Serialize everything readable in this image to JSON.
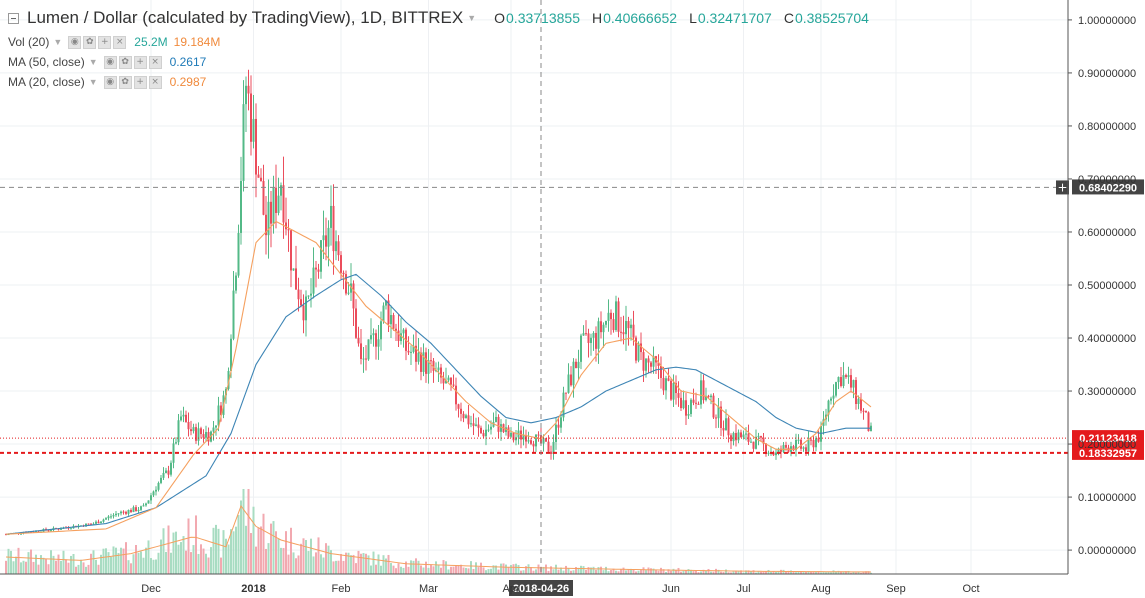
{
  "header": {
    "title": "Lumen / Dollar (calculated by TradingView), 1D, BITTREX",
    "ohlc": [
      {
        "label": "O",
        "value": "0.33713855"
      },
      {
        "label": "H",
        "value": "0.40666652"
      },
      {
        "label": "L",
        "value": "0.32471707"
      },
      {
        "label": "C",
        "value": "0.38525704"
      }
    ]
  },
  "indicators": {
    "vol": {
      "label": "Vol (20)",
      "value1": "25.2M",
      "value2": "19.184M"
    },
    "ma50": {
      "label": "MA (50, close)",
      "value": "0.2617"
    },
    "ma20": {
      "label": "MA (20, close)",
      "value": "0.2987"
    }
  },
  "colors": {
    "up": "#53b987",
    "down": "#eb4d5c",
    "ma50": "#3d85b5",
    "ma20": "#f5a05f",
    "vol_up": "#a8dcc2",
    "vol_down": "#f2a9b0",
    "dashed_red": "#e41a1c"
  },
  "price_labels": {
    "crosshair": "0.68402290",
    "last": "0.21123418",
    "line": "0.18332957",
    "crosshair_date": "2018-04-26"
  },
  "chart_data": {
    "type": "candlestick",
    "title": "Lumen / Dollar (calculated by TradingView), 1D, BITTREX",
    "y_range": [
      -0.03,
      1.03
    ],
    "y_ticks": [
      "1.00000000",
      "0.90000000",
      "0.80000000",
      "0.70000000",
      "0.60000000",
      "0.50000000",
      "0.40000000",
      "0.30000000",
      "0.20000000",
      "0.10000000",
      "0.00000000"
    ],
    "x_ticks": [
      "Dec",
      "2018",
      "Feb",
      "Mar",
      "Apr",
      "Jun",
      "Jul",
      "Aug",
      "Sep",
      "Oct"
    ],
    "close_keypoints": [
      [
        0,
        0.03
      ],
      [
        20,
        0.04
      ],
      [
        35,
        0.05
      ],
      [
        45,
        0.07
      ],
      [
        55,
        0.08
      ],
      [
        60,
        0.12
      ],
      [
        65,
        0.15
      ],
      [
        70,
        0.25
      ],
      [
        75,
        0.22
      ],
      [
        82,
        0.22
      ],
      [
        88,
        0.3
      ],
      [
        92,
        0.55
      ],
      [
        96,
        0.88
      ],
      [
        100,
        0.75
      ],
      [
        104,
        0.6
      ],
      [
        110,
        0.7
      ],
      [
        115,
        0.52
      ],
      [
        120,
        0.45
      ],
      [
        126,
        0.55
      ],
      [
        130,
        0.62
      ],
      [
        134,
        0.55
      ],
      [
        138,
        0.48
      ],
      [
        142,
        0.35
      ],
      [
        146,
        0.38
      ],
      [
        152,
        0.46
      ],
      [
        156,
        0.42
      ],
      [
        160,
        0.38
      ],
      [
        166,
        0.36
      ],
      [
        172,
        0.33
      ],
      [
        178,
        0.3
      ],
      [
        184,
        0.25
      ],
      [
        190,
        0.22
      ],
      [
        196,
        0.24
      ],
      [
        202,
        0.21
      ],
      [
        208,
        0.22
      ],
      [
        214,
        0.2
      ],
      [
        218,
        0.19
      ],
      [
        224,
        0.3
      ],
      [
        230,
        0.38
      ],
      [
        236,
        0.4
      ],
      [
        242,
        0.45
      ],
      [
        248,
        0.42
      ],
      [
        254,
        0.36
      ],
      [
        260,
        0.34
      ],
      [
        266,
        0.3
      ],
      [
        272,
        0.27
      ],
      [
        278,
        0.3
      ],
      [
        284,
        0.26
      ],
      [
        290,
        0.22
      ],
      [
        296,
        0.21
      ],
      [
        302,
        0.2
      ],
      [
        308,
        0.18
      ],
      [
        314,
        0.2
      ],
      [
        320,
        0.19
      ],
      [
        326,
        0.22
      ],
      [
        330,
        0.3
      ],
      [
        334,
        0.33
      ],
      [
        338,
        0.31
      ],
      [
        342,
        0.27
      ],
      [
        346,
        0.22
      ]
    ],
    "ma50_keypoints": [
      [
        0,
        0.03
      ],
      [
        40,
        0.05
      ],
      [
        60,
        0.08
      ],
      [
        80,
        0.14
      ],
      [
        90,
        0.22
      ],
      [
        100,
        0.35
      ],
      [
        112,
        0.44
      ],
      [
        124,
        0.48
      ],
      [
        134,
        0.51
      ],
      [
        140,
        0.52
      ],
      [
        150,
        0.48
      ],
      [
        160,
        0.43
      ],
      [
        170,
        0.39
      ],
      [
        180,
        0.34
      ],
      [
        190,
        0.29
      ],
      [
        200,
        0.25
      ],
      [
        210,
        0.24
      ],
      [
        220,
        0.25
      ],
      [
        230,
        0.27
      ],
      [
        240,
        0.3
      ],
      [
        250,
        0.32
      ],
      [
        260,
        0.34
      ],
      [
        268,
        0.345
      ],
      [
        276,
        0.34
      ],
      [
        284,
        0.32
      ],
      [
        292,
        0.3
      ],
      [
        300,
        0.28
      ],
      [
        308,
        0.25
      ],
      [
        316,
        0.23
      ],
      [
        326,
        0.22
      ],
      [
        336,
        0.23
      ],
      [
        346,
        0.23
      ]
    ],
    "ma20_keypoints": [
      [
        0,
        0.03
      ],
      [
        40,
        0.04
      ],
      [
        60,
        0.08
      ],
      [
        75,
        0.18
      ],
      [
        85,
        0.23
      ],
      [
        92,
        0.38
      ],
      [
        100,
        0.58
      ],
      [
        108,
        0.62
      ],
      [
        116,
        0.6
      ],
      [
        124,
        0.58
      ],
      [
        134,
        0.52
      ],
      [
        144,
        0.46
      ],
      [
        154,
        0.42
      ],
      [
        164,
        0.38
      ],
      [
        174,
        0.33
      ],
      [
        184,
        0.28
      ],
      [
        194,
        0.24
      ],
      [
        204,
        0.22
      ],
      [
        214,
        0.21
      ],
      [
        220,
        0.24
      ],
      [
        230,
        0.33
      ],
      [
        240,
        0.39
      ],
      [
        250,
        0.4
      ],
      [
        260,
        0.36
      ],
      [
        270,
        0.3
      ],
      [
        280,
        0.29
      ],
      [
        290,
        0.25
      ],
      [
        300,
        0.21
      ],
      [
        308,
        0.19
      ],
      [
        316,
        0.19
      ],
      [
        324,
        0.22
      ],
      [
        332,
        0.28
      ],
      [
        338,
        0.3
      ],
      [
        346,
        0.27
      ]
    ],
    "volume_keypoints": [
      [
        0,
        0.25
      ],
      [
        30,
        0.2
      ],
      [
        50,
        0.3
      ],
      [
        65,
        0.45
      ],
      [
        75,
        0.55
      ],
      [
        88,
        0.4
      ],
      [
        94,
        1.0
      ],
      [
        100,
        0.7
      ],
      [
        110,
        0.5
      ],
      [
        130,
        0.3
      ],
      [
        160,
        0.15
      ],
      [
        200,
        0.1
      ],
      [
        260,
        0.06
      ],
      [
        300,
        0.04
      ],
      [
        346,
        0.03
      ]
    ],
    "x_axis_label_positions": {
      "Dec": 58,
      "2018": 99,
      "Feb": 134,
      "Mar": 169,
      "Apr": 202,
      "Jun": 266,
      "Jul": 295,
      "Aug": 326,
      "Sep": 356,
      "Oct": 386
    },
    "horizontal_lines": [
      0.18332957,
      0.21123418
    ]
  }
}
